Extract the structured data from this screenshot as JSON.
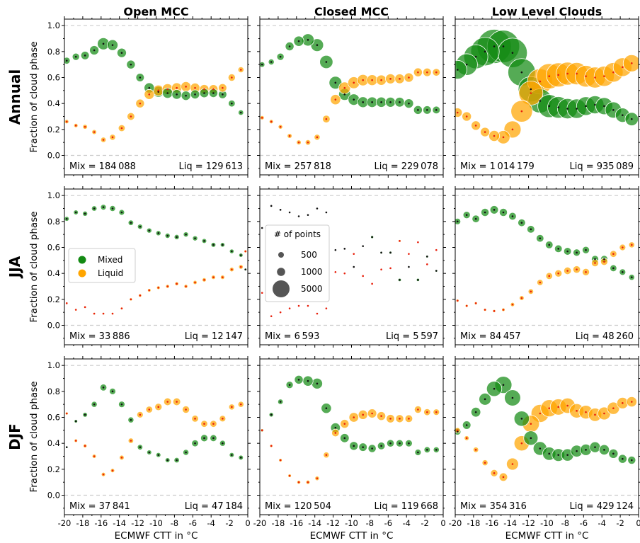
{
  "figure": {
    "columns": [
      "Open MCC",
      "Closed MCC",
      "Low Level Clouds"
    ],
    "rows": [
      "Annual",
      "JJA",
      "DJF"
    ],
    "ylabel": "Fraction of cloud phase",
    "xlabel": "ECMWF CTT in °C"
  },
  "chart_data": {
    "type": "scatter",
    "xlim": [
      -20,
      0
    ],
    "ylim": [
      -0.15,
      1.05
    ],
    "xticks": [
      -20,
      -18,
      -16,
      -14,
      -12,
      -10,
      -8,
      -6,
      -4,
      -2,
      0
    ],
    "xtick_labels": [
      "-20",
      "-18",
      "-16",
      "-14",
      "-12",
      "-10",
      "-8",
      "-6",
      "-4",
      "-2",
      "0"
    ],
    "yticks": [
      0.0,
      0.2,
      0.4,
      0.6,
      0.8,
      1.0
    ],
    "ytick_labels": [
      "0.0",
      "0.2",
      "0.4",
      "0.6",
      "0.8",
      "1.0"
    ],
    "grid": "dashed lines at 0.0 and 1.0",
    "colors": {
      "Mixed": "#138a13",
      "Liquid": "#ffa500"
    },
    "x": [
      -19.75,
      -18.75,
      -17.75,
      -16.75,
      -15.75,
      -14.75,
      -13.75,
      -12.75,
      -11.75,
      -10.75,
      -9.75,
      -8.75,
      -7.75,
      -6.75,
      -5.75,
      -4.75,
      -3.75,
      -2.75,
      -1.75,
      -0.75
    ],
    "series": [
      {
        "name": "Mixed"
      },
      {
        "name": "Liquid"
      }
    ],
    "legend": {
      "position": "center-left of JJA Open MCC panel",
      "entries": [
        "Mixed",
        "Liquid"
      ]
    },
    "size_legend": {
      "title": "# of points",
      "labels": [
        "500",
        "1000",
        "5000"
      ],
      "values": [
        500,
        1000,
        5000
      ],
      "position": "left of JJA Closed MCC panel"
    },
    "panels": [
      {
        "row": "Annual",
        "col": "Open MCC",
        "mix_label": "Mix = 184 088",
        "liq_label": "Liq = 129 613",
        "mixed": [
          0.73,
          0.76,
          0.77,
          0.81,
          0.86,
          0.85,
          0.79,
          0.7,
          0.6,
          0.52,
          0.49,
          0.48,
          0.47,
          0.46,
          0.47,
          0.48,
          0.48,
          0.47,
          0.4,
          0.33
        ],
        "liquid": [
          0.26,
          0.23,
          0.22,
          0.18,
          0.12,
          0.14,
          0.21,
          0.3,
          0.4,
          0.47,
          0.5,
          0.51,
          0.52,
          0.53,
          0.52,
          0.51,
          0.51,
          0.52,
          0.6,
          0.66
        ],
        "counts_mixed": [
          800,
          900,
          1200,
          1500,
          2500,
          2000,
          1500,
          1300,
          1200,
          1800,
          2000,
          1800,
          1600,
          1500,
          1400,
          1400,
          1300,
          1200,
          800,
          500
        ],
        "counts_liquid": [
          300,
          300,
          400,
          400,
          500,
          600,
          800,
          1000,
          1300,
          1700,
          2000,
          2000,
          1800,
          1700,
          1600,
          1500,
          1400,
          1200,
          900,
          600
        ]
      },
      {
        "row": "Annual",
        "col": "Closed MCC",
        "mix_label": "Mix = 257 818",
        "liq_label": "Liq = 229 078",
        "mixed": [
          0.7,
          0.72,
          0.76,
          0.84,
          0.88,
          0.89,
          0.85,
          0.72,
          0.56,
          0.47,
          0.43,
          0.41,
          0.41,
          0.41,
          0.41,
          0.41,
          0.4,
          0.35,
          0.35,
          0.35
        ],
        "liquid": [
          0.29,
          0.26,
          0.22,
          0.15,
          0.1,
          0.1,
          0.14,
          0.28,
          0.43,
          0.52,
          0.56,
          0.58,
          0.58,
          0.58,
          0.59,
          0.59,
          0.6,
          0.64,
          0.64,
          0.64
        ],
        "counts_mixed": [
          500,
          600,
          900,
          1300,
          1800,
          2600,
          2800,
          3000,
          2800,
          2400,
          2200,
          2000,
          1900,
          1800,
          1700,
          1600,
          1500,
          1300,
          1200,
          1000
        ],
        "counts_liquid": [
          300,
          300,
          350,
          400,
          400,
          500,
          600,
          1000,
          1800,
          2400,
          2400,
          2200,
          2000,
          1800,
          1700,
          1600,
          1500,
          1300,
          1200,
          1000
        ]
      },
      {
        "row": "Annual",
        "col": "Low Level Clouds",
        "mix_label": "Mix = 1 014 179",
        "liq_label": "Liq = 935 089",
        "mixed": [
          0.66,
          0.7,
          0.76,
          0.8,
          0.84,
          0.84,
          0.79,
          0.64,
          0.51,
          0.42,
          0.38,
          0.37,
          0.36,
          0.36,
          0.38,
          0.39,
          0.38,
          0.35,
          0.31,
          0.28
        ],
        "liquid": [
          0.33,
          0.3,
          0.23,
          0.18,
          0.15,
          0.14,
          0.2,
          0.34,
          0.48,
          0.57,
          0.61,
          0.62,
          0.63,
          0.63,
          0.61,
          0.6,
          0.61,
          0.64,
          0.68,
          0.71
        ],
        "counts_mixed": [
          6000,
          8000,
          10000,
          14000,
          20000,
          18000,
          15000,
          13000,
          11000,
          10000,
          9000,
          8000,
          7000,
          6500,
          6000,
          5500,
          5000,
          4500,
          3500,
          3000
        ],
        "counts_liquid": [
          1500,
          1500,
          1500,
          1500,
          2000,
          3000,
          5000,
          8000,
          10000,
          11000,
          11000,
          10000,
          9000,
          8500,
          8000,
          7500,
          7000,
          6500,
          6000,
          5000
        ]
      },
      {
        "row": "JJA",
        "col": "Open MCC",
        "mix_label": "Mix = 33 886",
        "liq_label": "Liq = 12 147",
        "mixed": [
          0.82,
          0.87,
          0.86,
          0.9,
          0.91,
          0.9,
          0.87,
          0.79,
          0.76,
          0.73,
          0.71,
          0.69,
          0.68,
          0.7,
          0.67,
          0.65,
          0.62,
          0.62,
          0.57,
          0.54
        ],
        "liquid": [
          0.17,
          0.12,
          0.14,
          0.09,
          0.09,
          0.09,
          0.13,
          0.2,
          0.23,
          0.27,
          0.29,
          0.3,
          0.32,
          0.3,
          0.33,
          0.35,
          0.37,
          0.37,
          0.43,
          0.45
        ],
        "counts_mixed": [
          400,
          400,
          450,
          500,
          550,
          600,
          550,
          500,
          450,
          450,
          450,
          450,
          450,
          450,
          450,
          400,
          400,
          350,
          350,
          300
        ],
        "counts_liquid": [
          100,
          100,
          100,
          100,
          100,
          100,
          120,
          150,
          180,
          200,
          220,
          250,
          260,
          260,
          280,
          300,
          320,
          320,
          350,
          350
        ],
        "extra_points": [
          {
            "x": -0.25,
            "y": 0.43,
            "series": "Mixed",
            "count": 120
          },
          {
            "x": -0.25,
            "y": 0.57,
            "series": "Liquid",
            "count": 150
          }
        ]
      },
      {
        "row": "JJA",
        "col": "Closed MCC",
        "mix_label": "Mix = 6 593",
        "liq_label": "Liq = 5 597",
        "mixed": [
          0.75,
          0.92,
          0.89,
          0.87,
          0.84,
          0.85,
          0.9,
          0.87,
          0.58,
          0.59,
          0.45,
          0.61,
          0.68,
          0.56,
          0.56,
          0.35,
          0.45,
          0.35,
          0.53,
          0.42
        ],
        "liquid": [
          0.25,
          0.07,
          0.1,
          0.13,
          0.15,
          0.15,
          0.09,
          0.13,
          0.41,
          0.4,
          0.55,
          0.38,
          0.32,
          0.43,
          0.44,
          0.65,
          0.55,
          0.64,
          0.47,
          0.58
        ],
        "counts_mixed": [
          20,
          20,
          20,
          20,
          20,
          20,
          20,
          20,
          20,
          20,
          40,
          70,
          150,
          110,
          130,
          180,
          80,
          170,
          120,
          110
        ],
        "counts_liquid": [
          20,
          20,
          20,
          20,
          20,
          20,
          20,
          20,
          20,
          20,
          20,
          20,
          20,
          20,
          20,
          120,
          20,
          20,
          20,
          20
        ]
      },
      {
        "row": "JJA",
        "col": "Low Level Clouds",
        "mix_label": "Mix = 84 457",
        "liq_label": "Liq = 48 260",
        "mixed": [
          0.8,
          0.85,
          0.82,
          0.87,
          0.89,
          0.87,
          0.84,
          0.79,
          0.74,
          0.67,
          0.62,
          0.59,
          0.57,
          0.56,
          0.58,
          0.51,
          0.51,
          0.44,
          0.41,
          0.37
        ],
        "liquid": [
          0.19,
          0.15,
          0.17,
          0.12,
          0.11,
          0.12,
          0.16,
          0.21,
          0.26,
          0.33,
          0.38,
          0.4,
          0.42,
          0.43,
          0.41,
          0.48,
          0.49,
          0.55,
          0.6,
          0.62
        ],
        "counts_mixed": [
          700,
          900,
          1000,
          1100,
          1200,
          1100,
          1000,
          1000,
          1000,
          1000,
          1000,
          1000,
          1000,
          900,
          900,
          900,
          900,
          800,
          700,
          600
        ],
        "counts_liquid": [
          150,
          150,
          150,
          150,
          150,
          200,
          300,
          400,
          500,
          650,
          800,
          900,
          950,
          950,
          900,
          900,
          900,
          800,
          700,
          600
        ]
      },
      {
        "row": "DJF",
        "col": "Open MCC",
        "mix_label": "Mix = 37 841",
        "liq_label": "Liq = 47 184",
        "mixed": [
          0.37,
          0.57,
          0.62,
          0.7,
          0.83,
          0.8,
          0.7,
          0.58,
          0.37,
          0.33,
          0.31,
          0.27,
          0.27,
          0.33,
          0.4,
          0.44,
          0.44,
          0.4,
          0.31,
          0.29
        ],
        "liquid": [
          0.63,
          0.42,
          0.38,
          0.3,
          0.16,
          0.19,
          0.29,
          0.42,
          0.62,
          0.66,
          0.68,
          0.72,
          0.72,
          0.66,
          0.59,
          0.55,
          0.55,
          0.59,
          0.68,
          0.7
        ],
        "counts_mixed": [
          100,
          200,
          400,
          600,
          800,
          700,
          700,
          600,
          500,
          400,
          400,
          400,
          500,
          600,
          800,
          900,
          800,
          600,
          400,
          400
        ],
        "counts_liquid": [
          150,
          200,
          250,
          300,
          300,
          300,
          400,
          500,
          700,
          800,
          900,
          1000,
          1000,
          900,
          800,
          800,
          800,
          700,
          600,
          600
        ]
      },
      {
        "row": "DJF",
        "col": "Closed MCC",
        "mix_label": "Mix = 120 504",
        "liq_label": "Liq = 119 668",
        "mixed": [
          0.5,
          0.62,
          0.72,
          0.85,
          0.89,
          0.88,
          0.86,
          0.67,
          0.52,
          0.44,
          0.38,
          0.37,
          0.36,
          0.38,
          0.4,
          0.4,
          0.4,
          0.33,
          0.35,
          0.35
        ],
        "liquid": [
          0.5,
          0.38,
          0.27,
          0.15,
          0.1,
          0.1,
          0.13,
          0.31,
          0.48,
          0.55,
          0.6,
          0.62,
          0.63,
          0.61,
          0.59,
          0.59,
          0.59,
          0.66,
          0.64,
          0.64
        ],
        "counts_mixed": [
          150,
          350,
          500,
          900,
          1300,
          1800,
          2000,
          1800,
          1600,
          1400,
          1300,
          1200,
          1100,
          1000,
          950,
          900,
          850,
          700,
          650,
          600
        ],
        "counts_liquid": [
          150,
          150,
          200,
          200,
          250,
          300,
          350,
          600,
          1000,
          1300,
          1600,
          1500,
          1400,
          1300,
          1200,
          1100,
          1000,
          900,
          800,
          700
        ]
      },
      {
        "row": "DJF",
        "col": "Low Level Clouds",
        "mix_label": "Mix = 354 316",
        "liq_label": "Liq = 429 124",
        "mixed": [
          0.49,
          0.54,
          0.64,
          0.74,
          0.82,
          0.85,
          0.75,
          0.59,
          0.44,
          0.36,
          0.32,
          0.31,
          0.31,
          0.34,
          0.35,
          0.37,
          0.35,
          0.32,
          0.28,
          0.27
        ],
        "liquid": [
          0.5,
          0.44,
          0.35,
          0.25,
          0.17,
          0.14,
          0.24,
          0.4,
          0.55,
          0.63,
          0.67,
          0.68,
          0.69,
          0.65,
          0.64,
          0.62,
          0.63,
          0.67,
          0.71,
          0.72
        ],
        "counts_mixed": [
          800,
          1200,
          1600,
          2500,
          4000,
          5000,
          4500,
          4000,
          3500,
          3200,
          3000,
          2800,
          2600,
          2400,
          2200,
          2000,
          1800,
          1500,
          1300,
          1100
        ],
        "counts_liquid": [
          500,
          400,
          500,
          600,
          900,
          1200,
          2500,
          4000,
          5000,
          5500,
          5000,
          4500,
          4000,
          3500,
          3200,
          3000,
          2800,
          2600,
          2200,
          1800
        ]
      }
    ]
  }
}
